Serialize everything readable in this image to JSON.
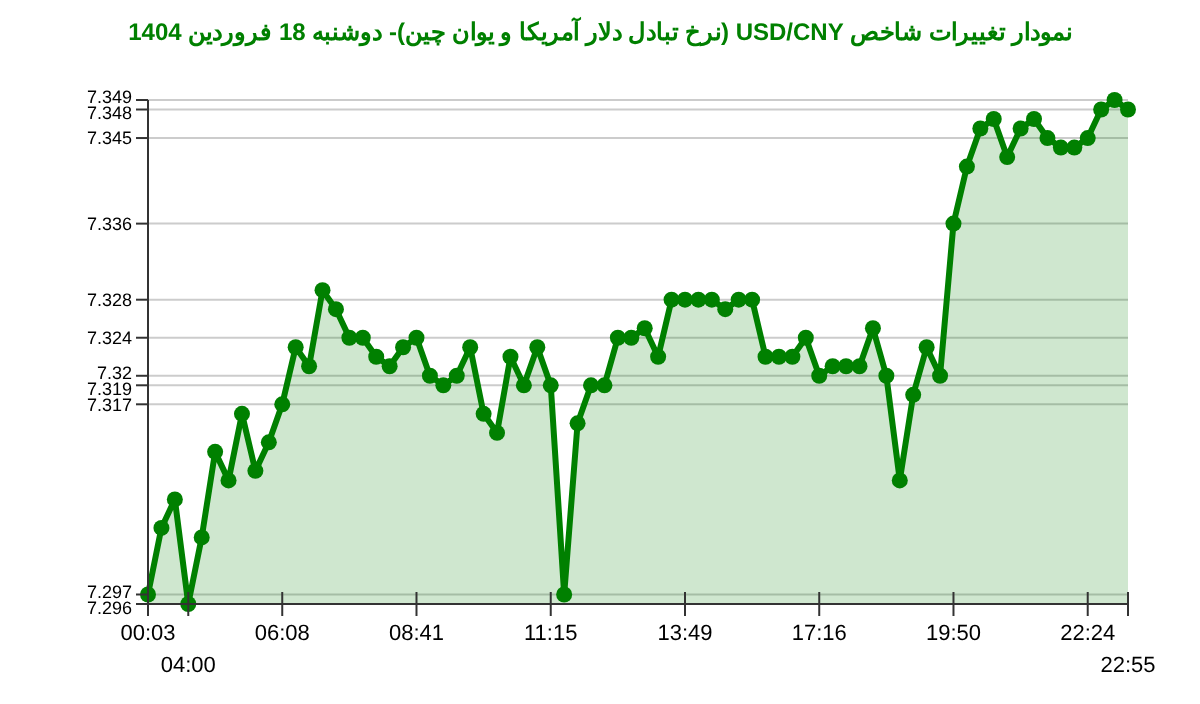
{
  "chart_data": {
    "type": "area",
    "title": "نمودار تغییرات شاخص USD/CNY (نرخ تبادل دلار آمریکا و یوان چین)- دوشنبه  18 فروردین 1404",
    "categories": [
      "00:03",
      null,
      null,
      "04:00",
      null,
      null,
      null,
      null,
      null,
      null,
      "06:08",
      null,
      null,
      null,
      null,
      null,
      null,
      null,
      null,
      null,
      "08:41",
      null,
      null,
      null,
      null,
      null,
      null,
      null,
      null,
      null,
      "11:15",
      null,
      null,
      null,
      null,
      null,
      null,
      null,
      null,
      null,
      "13:49",
      null,
      null,
      null,
      null,
      null,
      null,
      null,
      null,
      null,
      "17:16",
      null,
      null,
      null,
      null,
      null,
      null,
      null,
      null,
      null,
      "19:50",
      null,
      null,
      null,
      null,
      null,
      null,
      null,
      null,
      null,
      "22:24",
      null,
      null,
      "22:55"
    ],
    "series": [
      {
        "color": "#008000",
        "values": [
          7.297,
          7.304,
          7.307,
          7.296,
          7.303,
          7.312,
          7.309,
          7.316,
          7.31,
          7.313,
          7.317,
          7.323,
          7.321,
          7.329,
          7.327,
          7.324,
          7.324,
          7.322,
          7.321,
          7.323,
          7.324,
          7.32,
          7.319,
          7.32,
          7.323,
          7.316,
          7.314,
          7.322,
          7.319,
          7.323,
          7.319,
          7.297,
          7.315,
          7.319,
          7.319,
          7.324,
          7.324,
          7.325,
          7.322,
          7.328,
          7.328,
          7.328,
          7.328,
          7.327,
          7.328,
          7.328,
          7.322,
          7.322,
          7.322,
          7.324,
          7.32,
          7.321,
          7.321,
          7.321,
          7.325,
          7.32,
          7.309,
          7.318,
          7.323,
          7.32,
          7.336,
          7.342,
          7.346,
          7.347,
          7.343,
          7.346,
          7.347,
          7.345,
          7.344,
          7.344,
          7.345,
          7.348,
          7.349,
          7.348
        ]
      }
    ],
    "ylim": [
      7.296,
      7.349
    ],
    "yticks": [
      7.296,
      7.297,
      7.317,
      7.319,
      7.32,
      7.324,
      7.328,
      7.336,
      7.345,
      7.348,
      7.349
    ],
    "grid": "y",
    "marker": "circle",
    "line_style": "solid"
  }
}
